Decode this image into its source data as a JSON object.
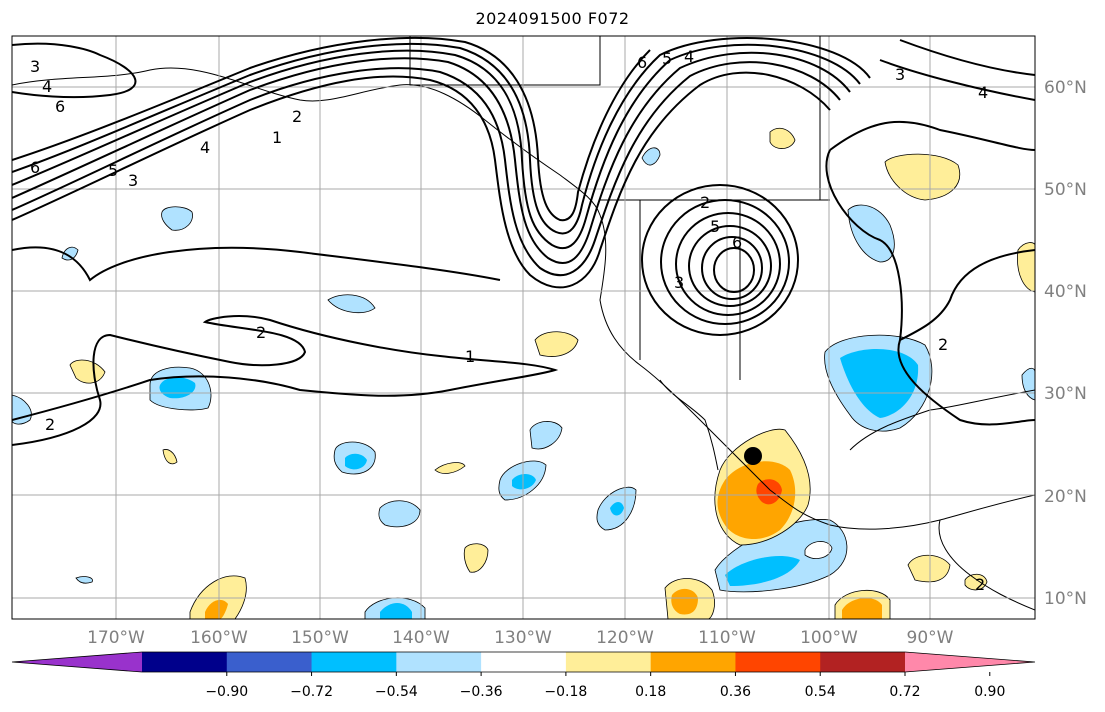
{
  "title": "2024091500 F072",
  "map": {
    "lon_labels": [
      "170°W",
      "160°W",
      "150°W",
      "140°W",
      "130°W",
      "120°W",
      "110°W",
      "100°W",
      "90°W"
    ],
    "lat_labels": [
      "60°N",
      "50°N",
      "40°N",
      "30°N",
      "20°N",
      "10°N"
    ],
    "contour_labels": [
      "3",
      "4",
      "6",
      "6",
      "5",
      "3",
      "4",
      "1",
      "2",
      "2",
      "1",
      "2",
      "6",
      "5",
      "4",
      "2",
      "5",
      "6",
      "3",
      "3",
      "4",
      "2",
      "2"
    ],
    "storm_marker": {
      "label": "",
      "lon": -107.5,
      "lat": 23.7
    }
  },
  "colorbar": {
    "ticks": [
      "−0.90",
      "−0.72",
      "−0.54",
      "−0.36",
      "−0.18",
      "0.18",
      "0.36",
      "0.54",
      "0.72",
      "0.90"
    ],
    "colors": [
      "#9932cc",
      "#00008b",
      "#3a5fcd",
      "#00bfff",
      "#b0e2ff",
      "#ffffff",
      "#ffee99",
      "#ffa500",
      "#ff4500",
      "#b22222",
      "#ff88aa"
    ]
  },
  "fill_colors": {
    "neg_light": "#b0e2ff",
    "neg_mid": "#00bfff",
    "pos_light": "#ffee99",
    "pos_mid": "#ffa500",
    "pos_high": "#ff4500"
  }
}
